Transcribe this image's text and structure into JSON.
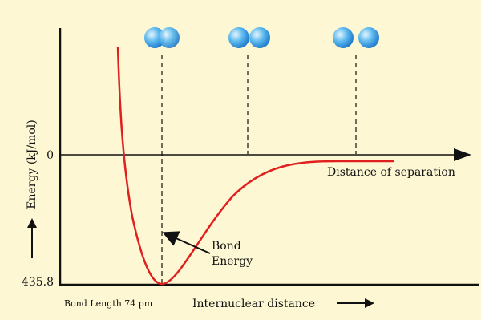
{
  "axis": {
    "zero_label": "0",
    "min_label": "435.8",
    "y_label": "Energy (kJ/mol)",
    "zero_line_label": "Distance of separation",
    "x_label": "Internuclear distance"
  },
  "annotations": {
    "bond_energy": [
      "Bond",
      "Energy"
    ],
    "bond_length": "Bond Length 74 pm"
  }
}
